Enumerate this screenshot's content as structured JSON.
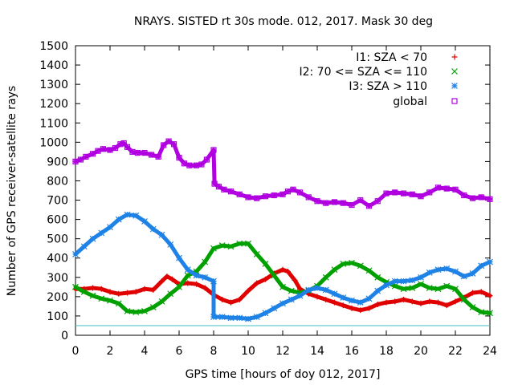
{
  "chart_data": {
    "type": "scatter",
    "title": "NRAYS. SISTED rt 30s mode. 012, 2017. Mask 30 deg",
    "xlabel": "GPS time [hours of doy 012, 2017]",
    "ylabel": "Number of GPS receiver-satellite rays",
    "xlim": [
      0,
      24
    ],
    "ylim": [
      0,
      1500
    ],
    "xticks": [
      0,
      2,
      4,
      6,
      8,
      10,
      12,
      14,
      16,
      18,
      20,
      22,
      24
    ],
    "yticks": [
      0,
      100,
      200,
      300,
      400,
      500,
      600,
      700,
      800,
      900,
      1000,
      1100,
      1200,
      1300,
      1400,
      1500
    ],
    "reference_line": {
      "y": 50,
      "color": "#40c0c0"
    },
    "legend_position": "top-right",
    "series": [
      {
        "name": "I1: SZA < 70",
        "marker": "plus",
        "color": "#e00000",
        "x": [
          0.0,
          0.5,
          1.0,
          1.5,
          2.0,
          2.5,
          3.0,
          3.5,
          4.0,
          4.5,
          5.0,
          5.3,
          5.6,
          6.0,
          6.5,
          7.0,
          7.5,
          8.0,
          8.5,
          9.0,
          9.5,
          10.0,
          10.5,
          11.0,
          11.5,
          12.0,
          12.3,
          12.7,
          13.0,
          13.5,
          14.0,
          14.5,
          15.0,
          15.5,
          16.0,
          16.5,
          17.0,
          17.5,
          18.0,
          18.5,
          19.0,
          19.5,
          20.0,
          20.5,
          21.0,
          21.5,
          22.0,
          22.5,
          23.0,
          23.5,
          24.0
        ],
        "y": [
          240,
          240,
          245,
          240,
          225,
          215,
          220,
          225,
          240,
          235,
          280,
          305,
          290,
          265,
          270,
          265,
          245,
          210,
          185,
          170,
          185,
          230,
          270,
          290,
          320,
          340,
          330,
          285,
          240,
          215,
          200,
          185,
          170,
          155,
          140,
          130,
          140,
          160,
          170,
          175,
          185,
          175,
          165,
          175,
          170,
          155,
          175,
          195,
          220,
          225,
          205
        ]
      },
      {
        "name": "I2: 70 <= SZA <= 110",
        "marker": "cross",
        "color": "#00a000",
        "x": [
          0.0,
          0.5,
          1.0,
          1.5,
          2.0,
          2.5,
          3.0,
          3.5,
          4.0,
          4.5,
          5.0,
          5.5,
          6.0,
          6.5,
          7.0,
          7.5,
          8.0,
          8.5,
          9.0,
          9.5,
          10.0,
          10.5,
          11.0,
          11.5,
          12.0,
          12.5,
          13.0,
          13.5,
          14.0,
          14.5,
          15.0,
          15.5,
          16.0,
          16.5,
          17.0,
          17.5,
          18.0,
          18.5,
          19.0,
          19.5,
          20.0,
          20.5,
          21.0,
          21.5,
          22.0,
          22.5,
          23.0,
          23.5,
          24.0
        ],
        "y": [
          250,
          225,
          205,
          190,
          180,
          165,
          125,
          120,
          125,
          145,
          175,
          215,
          250,
          310,
          330,
          380,
          450,
          465,
          460,
          475,
          475,
          420,
          370,
          310,
          250,
          230,
          220,
          230,
          255,
          300,
          340,
          370,
          375,
          360,
          335,
          300,
          275,
          255,
          240,
          245,
          265,
          245,
          240,
          255,
          240,
          185,
          145,
          120,
          115
        ]
      },
      {
        "name": "I3: SZA > 110",
        "marker": "star",
        "color": "#1e82e6",
        "x": [
          0.0,
          0.5,
          1.0,
          1.5,
          2.0,
          2.5,
          3.0,
          3.5,
          4.0,
          4.5,
          5.0,
          5.5,
          6.0,
          6.5,
          7.0,
          7.5,
          8.0,
          8.0,
          8.5,
          9.0,
          9.5,
          10.0,
          10.5,
          11.0,
          11.5,
          12.0,
          12.5,
          13.0,
          13.5,
          14.0,
          14.5,
          15.0,
          15.5,
          16.0,
          16.5,
          17.0,
          17.5,
          18.0,
          18.5,
          19.0,
          19.5,
          20.0,
          20.5,
          21.0,
          21.5,
          22.0,
          22.5,
          23.0,
          23.5,
          24.0
        ],
        "y": [
          420,
          460,
          500,
          530,
          560,
          600,
          625,
          620,
          590,
          550,
          520,
          470,
          400,
          340,
          310,
          300,
          280,
          95,
          95,
          90,
          90,
          85,
          95,
          115,
          140,
          165,
          185,
          205,
          235,
          245,
          235,
          215,
          195,
          180,
          170,
          190,
          230,
          260,
          280,
          280,
          285,
          300,
          325,
          340,
          345,
          330,
          305,
          320,
          360,
          380
        ]
      },
      {
        "name": "global",
        "marker": "square",
        "color": "#b000e0",
        "x": [
          0.0,
          0.3,
          0.6,
          1.0,
          1.3,
          1.6,
          2.0,
          2.3,
          2.6,
          2.8,
          3.0,
          3.3,
          3.6,
          4.0,
          4.4,
          4.8,
          5.1,
          5.4,
          5.7,
          6.0,
          6.3,
          6.6,
          7.0,
          7.3,
          7.6,
          8.0,
          8.05,
          8.3,
          8.6,
          9.0,
          9.5,
          10.0,
          10.5,
          11.0,
          11.5,
          12.0,
          12.3,
          12.6,
          13.0,
          13.5,
          14.0,
          14.5,
          15.0,
          15.5,
          16.0,
          16.5,
          17.0,
          17.5,
          18.0,
          18.5,
          19.0,
          19.5,
          20.0,
          20.5,
          21.0,
          21.5,
          22.0,
          22.5,
          23.0,
          23.5,
          24.0
        ],
        "y": [
          900,
          910,
          925,
          940,
          955,
          965,
          960,
          970,
          990,
          995,
          975,
          950,
          945,
          945,
          935,
          925,
          985,
          1005,
          990,
          920,
          890,
          880,
          880,
          885,
          910,
          960,
          785,
          770,
          755,
          745,
          730,
          715,
          710,
          720,
          725,
          730,
          745,
          755,
          740,
          715,
          695,
          685,
          690,
          685,
          675,
          700,
          670,
          695,
          735,
          740,
          735,
          730,
          720,
          740,
          765,
          760,
          755,
          725,
          710,
          715,
          705
        ]
      }
    ]
  }
}
